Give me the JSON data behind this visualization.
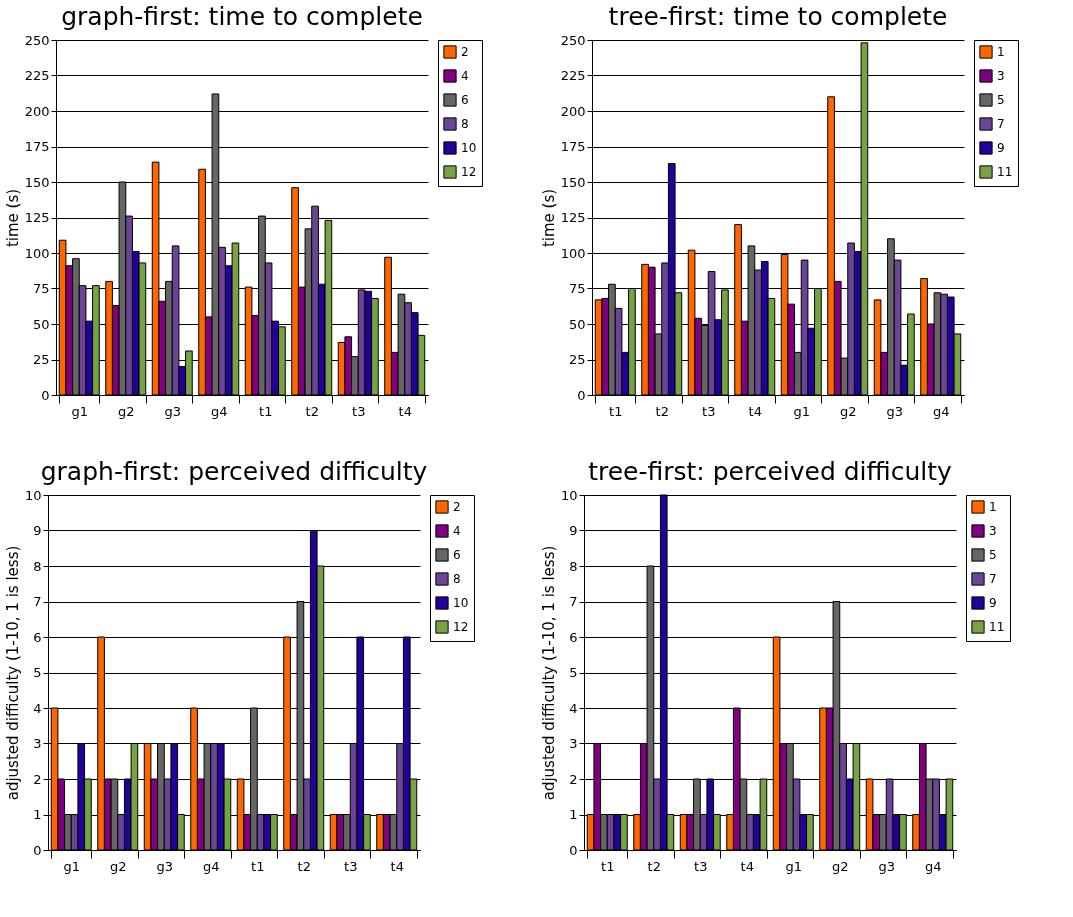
{
  "chart_data": [
    {
      "type": "bar",
      "title": "graph-first: time to complete",
      "ylabel": "time (s)",
      "categories": [
        "g1",
        "g2",
        "g3",
        "g4",
        "t1",
        "t2",
        "t3",
        "t4"
      ],
      "ylim": [
        0,
        250
      ],
      "yticks": [
        0,
        25,
        50,
        75,
        100,
        125,
        150,
        175,
        200,
        225,
        250
      ],
      "grid": "y",
      "legend": "right",
      "series": [
        {
          "name": "2",
          "color": "#ff6600",
          "values": [
            109,
            80,
            164,
            159,
            76,
            146,
            37,
            97
          ]
        },
        {
          "name": "4",
          "color": "#800080",
          "values": [
            91,
            63,
            66,
            55,
            56,
            76,
            41,
            30
          ]
        },
        {
          "name": "6",
          "color": "#666666",
          "values": [
            96,
            150,
            80,
            212,
            126,
            117,
            27,
            71
          ]
        },
        {
          "name": "8",
          "color": "#6b4495",
          "values": [
            77,
            126,
            105,
            104,
            93,
            133,
            74,
            65
          ]
        },
        {
          "name": "10",
          "color": "#22009a",
          "values": [
            52,
            101,
            20,
            91,
            52,
            78,
            73,
            58
          ]
        },
        {
          "name": "12",
          "color": "#77a344",
          "values": [
            77,
            93,
            31,
            107,
            48,
            123,
            68,
            42
          ]
        }
      ]
    },
    {
      "type": "bar",
      "title": "tree-first: time to complete",
      "ylabel": "time (s)",
      "categories": [
        "t1",
        "t2",
        "t3",
        "t4",
        "g1",
        "g2",
        "g3",
        "g4"
      ],
      "ylim": [
        0,
        250
      ],
      "yticks": [
        0,
        25,
        50,
        75,
        100,
        125,
        150,
        175,
        200,
        225,
        250
      ],
      "grid": "y",
      "legend": "right",
      "series": [
        {
          "name": "1",
          "color": "#ff6600",
          "values": [
            67,
            92,
            102,
            120,
            99,
            210,
            67,
            82
          ]
        },
        {
          "name": "3",
          "color": "#800080",
          "values": [
            68,
            90,
            54,
            52,
            64,
            80,
            30,
            50
          ]
        },
        {
          "name": "5",
          "color": "#666666",
          "values": [
            78,
            43,
            49,
            105,
            30,
            26,
            110,
            72
          ]
        },
        {
          "name": "7",
          "color": "#6b4495",
          "values": [
            61,
            93,
            87,
            88,
            95,
            107,
            95,
            71
          ]
        },
        {
          "name": "9",
          "color": "#22009a",
          "values": [
            30,
            163,
            53,
            94,
            47,
            101,
            21,
            69
          ]
        },
        {
          "name": "11",
          "color": "#77a344",
          "values": [
            75,
            72,
            74,
            68,
            75,
            248,
            57,
            43
          ]
        }
      ]
    },
    {
      "type": "bar",
      "title": "graph-first: perceived difficulty",
      "ylabel": "adjusted difficulty (1-10, 1 is less)",
      "categories": [
        "g1",
        "g2",
        "g3",
        "g4",
        "t1",
        "t2",
        "t3",
        "t4"
      ],
      "ylim": [
        0,
        10
      ],
      "yticks": [
        0,
        1,
        2,
        3,
        4,
        5,
        6,
        7,
        8,
        9,
        10
      ],
      "grid": "y",
      "legend": "right",
      "series": [
        {
          "name": "2",
          "color": "#ff6600",
          "values": [
            4,
            6,
            3,
            4,
            2,
            6,
            1,
            1
          ]
        },
        {
          "name": "4",
          "color": "#800080",
          "values": [
            2,
            2,
            2,
            2,
            1,
            1,
            1,
            1
          ]
        },
        {
          "name": "6",
          "color": "#666666",
          "values": [
            1,
            2,
            3,
            3,
            4,
            7,
            1,
            1
          ]
        },
        {
          "name": "8",
          "color": "#6b4495",
          "values": [
            1,
            1,
            2,
            3,
            1,
            2,
            3,
            3
          ]
        },
        {
          "name": "10",
          "color": "#22009a",
          "values": [
            3,
            2,
            3,
            3,
            1,
            9,
            6,
            6
          ]
        },
        {
          "name": "12",
          "color": "#77a344",
          "values": [
            2,
            3,
            1,
            2,
            1,
            8,
            1,
            2
          ]
        }
      ]
    },
    {
      "type": "bar",
      "title": "tree-first: perceived difficulty",
      "ylabel": "adjusted difficulty (1-10, 1 is less)",
      "categories": [
        "t1",
        "t2",
        "t3",
        "t4",
        "g1",
        "g2",
        "g3",
        "g4"
      ],
      "ylim": [
        0,
        10
      ],
      "yticks": [
        0,
        1,
        2,
        3,
        4,
        5,
        6,
        7,
        8,
        9,
        10
      ],
      "grid": "y",
      "legend": "right",
      "series": [
        {
          "name": "1",
          "color": "#ff6600",
          "values": [
            1,
            1,
            1,
            1,
            6,
            4,
            2,
            1
          ]
        },
        {
          "name": "3",
          "color": "#800080",
          "values": [
            3,
            3,
            1,
            4,
            3,
            4,
            1,
            3
          ]
        },
        {
          "name": "5",
          "color": "#666666",
          "values": [
            1,
            8,
            2,
            2,
            3,
            7,
            1,
            2
          ]
        },
        {
          "name": "7",
          "color": "#6b4495",
          "values": [
            1,
            2,
            1,
            1,
            2,
            3,
            2,
            2
          ]
        },
        {
          "name": "9",
          "color": "#22009a",
          "values": [
            1,
            10,
            2,
            1,
            1,
            2,
            1,
            1
          ]
        },
        {
          "name": "11",
          "color": "#77a344",
          "values": [
            1,
            1,
            1,
            2,
            1,
            3,
            1,
            2
          ]
        }
      ]
    }
  ]
}
